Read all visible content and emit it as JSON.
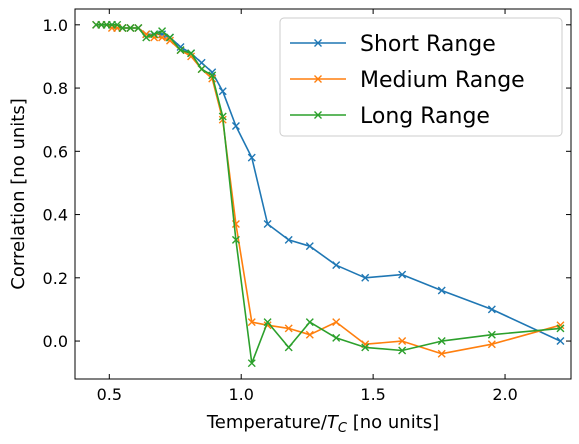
{
  "chart_data": {
    "type": "line",
    "xlabel_text": "Temperature/",
    "xlabel_symbol": "T",
    "xlabel_subscript": "C",
    "xlabel_units": " [no units]",
    "ylabel": "Correlation [no units]",
    "xlim": [
      0.37,
      2.25
    ],
    "ylim": [
      -0.12,
      1.05
    ],
    "xticks": [
      0.5,
      1.0,
      1.5,
      2.0
    ],
    "xtick_labels": [
      "0.5",
      "1.0",
      "1.5",
      "2.0"
    ],
    "yticks": [
      0.0,
      0.2,
      0.4,
      0.6,
      0.8,
      1.0
    ],
    "ytick_labels": [
      "0.0",
      "0.2",
      "0.4",
      "0.6",
      "0.8",
      "1.0"
    ],
    "grid": false,
    "legend_position": "top-right",
    "marker": "x",
    "series": [
      {
        "name": "Short Range",
        "color": "#1f77b4",
        "x": [
          0.45,
          0.47,
          0.49,
          0.51,
          0.53,
          0.55,
          0.58,
          0.61,
          0.64,
          0.67,
          0.7,
          0.73,
          0.77,
          0.81,
          0.85,
          0.89,
          0.93,
          0.98,
          1.04,
          1.1,
          1.18,
          1.26,
          1.36,
          1.47,
          1.61,
          1.76,
          1.95,
          2.21
        ],
        "y": [
          1.0,
          1.0,
          1.0,
          1.0,
          0.99,
          0.99,
          0.99,
          0.99,
          0.97,
          0.97,
          0.97,
          0.96,
          0.93,
          0.91,
          0.88,
          0.85,
          0.79,
          0.68,
          0.58,
          0.37,
          0.32,
          0.3,
          0.24,
          0.2,
          0.21,
          0.16,
          0.1,
          0.0
        ]
      },
      {
        "name": "Medium Range",
        "color": "#ff7f0e",
        "x": [
          0.45,
          0.47,
          0.49,
          0.51,
          0.53,
          0.55,
          0.58,
          0.61,
          0.64,
          0.67,
          0.7,
          0.73,
          0.77,
          0.81,
          0.85,
          0.89,
          0.93,
          0.98,
          1.04,
          1.1,
          1.18,
          1.26,
          1.36,
          1.47,
          1.61,
          1.76,
          1.95,
          2.21
        ],
        "y": [
          1.0,
          1.0,
          1.0,
          0.99,
          0.99,
          0.99,
          0.99,
          0.99,
          0.97,
          0.96,
          0.96,
          0.95,
          0.92,
          0.9,
          0.86,
          0.83,
          0.7,
          0.37,
          0.06,
          0.05,
          0.04,
          0.02,
          0.06,
          -0.01,
          0.0,
          -0.04,
          -0.01,
          0.05
        ]
      },
      {
        "name": "Long Range",
        "color": "#2ca02c",
        "x": [
          0.45,
          0.47,
          0.49,
          0.51,
          0.53,
          0.55,
          0.58,
          0.61,
          0.64,
          0.67,
          0.7,
          0.73,
          0.77,
          0.81,
          0.85,
          0.89,
          0.93,
          0.98,
          1.04,
          1.1,
          1.18,
          1.26,
          1.36,
          1.47,
          1.61,
          1.76,
          1.95,
          2.21
        ],
        "y": [
          1.0,
          1.0,
          1.0,
          1.0,
          1.0,
          0.99,
          0.99,
          0.99,
          0.96,
          0.97,
          0.98,
          0.96,
          0.92,
          0.91,
          0.86,
          0.84,
          0.71,
          0.32,
          -0.07,
          0.06,
          -0.02,
          0.06,
          0.01,
          -0.02,
          -0.03,
          0.0,
          0.02,
          0.04
        ]
      }
    ]
  }
}
